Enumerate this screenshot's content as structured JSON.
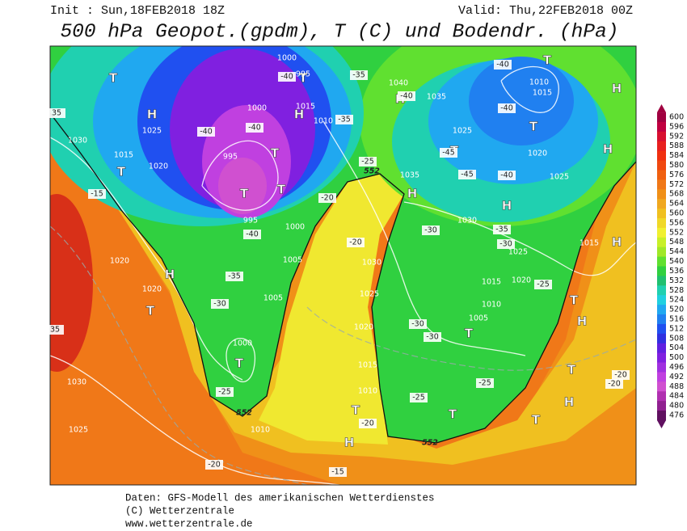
{
  "header": {
    "init": "Init : Sun,18FEB2018 18Z",
    "valid": "Valid: Thu,22FEB2018 00Z",
    "title": "500 hPa Geopot.(gpdm), T (C) und Bodendr. (hPa)"
  },
  "colorbar": {
    "ticks": [
      600,
      596,
      592,
      588,
      584,
      580,
      576,
      572,
      568,
      564,
      560,
      556,
      552,
      548,
      544,
      540,
      536,
      532,
      528,
      524,
      520,
      516,
      512,
      508,
      504,
      500,
      496,
      492,
      488,
      484,
      480,
      476
    ],
    "colors": [
      "#a00040",
      "#c00040",
      "#d81030",
      "#e82020",
      "#f03010",
      "#f04810",
      "#f06010",
      "#f07818",
      "#f09018",
      "#f0a820",
      "#f0c020",
      "#f0d828",
      "#f0f030",
      "#c8f028",
      "#a0e828",
      "#60e030",
      "#30d040",
      "#20c070",
      "#20d0b0",
      "#20d0e0",
      "#20a8f0",
      "#2080f0",
      "#2050f0",
      "#3030e0",
      "#6020e0",
      "#8020e0",
      "#a030e0",
      "#c040e0",
      "#d050d0",
      "#b030b0",
      "#902090",
      "#601060"
    ]
  },
  "map_labels": [
    "T",
    "T",
    "H",
    "H",
    "T",
    "H",
    "T",
    "H",
    "T",
    "T",
    "H",
    "H",
    "H",
    "T",
    "T",
    "H",
    "T",
    "T",
    "T",
    "H",
    "T",
    "T",
    "T",
    "H",
    "H",
    "T",
    "H",
    "T",
    "T",
    "1000",
    "995",
    "1040",
    "1035",
    "1010",
    "1015",
    "1000",
    "1015",
    "1010",
    "1025",
    "1030",
    "1015",
    "1025",
    "1020",
    "1025",
    "1035",
    "1020",
    "995",
    "995",
    "1000",
    "1030",
    "1025",
    "1015",
    "1020",
    "1005",
    "1030",
    "1020",
    "1015",
    "1020",
    "1005",
    "1025",
    "1010",
    "1005",
    "1020",
    "1000",
    "1015",
    "1010",
    "1030",
    "1025",
    "1010",
    "-40",
    "-40",
    "-35",
    "-40",
    "-40",
    "-40",
    "-40",
    "-35",
    "-45",
    "-45",
    "-40",
    "-25",
    "-20",
    "-15",
    "-40",
    "-35",
    "-30",
    "-35",
    "-30",
    "-20",
    "-25",
    "-30",
    "-30",
    "-30",
    "-25",
    "-25",
    "-25",
    "-20",
    "-20",
    "-20",
    "-20",
    "-15",
    "35",
    "35",
    "552",
    "552",
    "552"
  ],
  "footer": [
    "Daten: GFS-Modell des amerikanischen Wetterdienstes",
    "(C) Wetterzentrale",
    "www.wetterzentrale.de"
  ]
}
